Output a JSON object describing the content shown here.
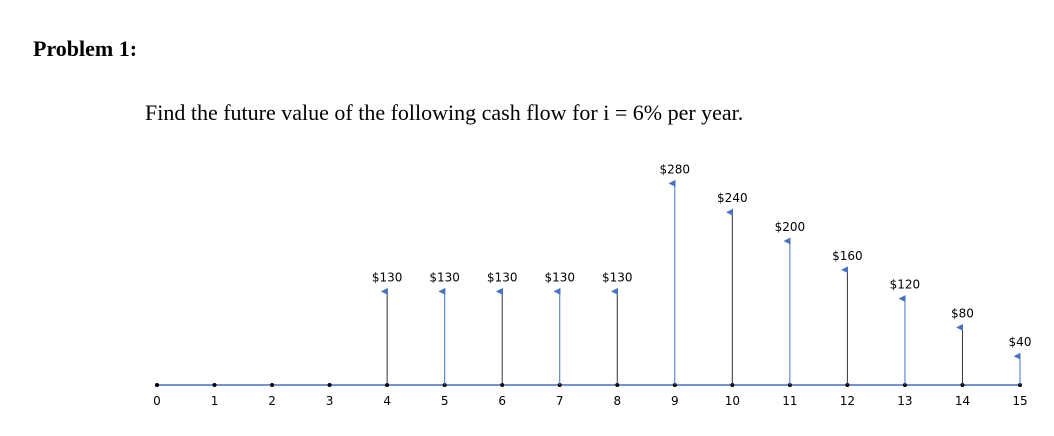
{
  "heading": "Problem 1:",
  "question": "Find the future value of the following cash flow for i = 6% per year.",
  "diagram": {
    "periods": [
      0,
      1,
      2,
      3,
      4,
      5,
      6,
      7,
      8,
      9,
      10,
      11,
      12,
      13,
      14,
      15
    ],
    "cash_flows": [
      {
        "period": 4,
        "amount": 130,
        "label": "$130"
      },
      {
        "period": 5,
        "amount": 130,
        "label": "$130"
      },
      {
        "period": 6,
        "amount": 130,
        "label": "$130"
      },
      {
        "period": 7,
        "amount": 130,
        "label": "$130"
      },
      {
        "period": 8,
        "amount": 130,
        "label": "$130"
      },
      {
        "period": 9,
        "amount": 280,
        "label": "$280"
      },
      {
        "period": 10,
        "amount": 240,
        "label": "$240"
      },
      {
        "period": 11,
        "amount": 200,
        "label": "$200"
      },
      {
        "period": 12,
        "amount": 160,
        "label": "$160"
      },
      {
        "period": 13,
        "amount": 120,
        "label": "$120"
      },
      {
        "period": 14,
        "amount": 80,
        "label": "$80"
      },
      {
        "period": 15,
        "amount": 40,
        "label": "$40"
      }
    ]
  }
}
